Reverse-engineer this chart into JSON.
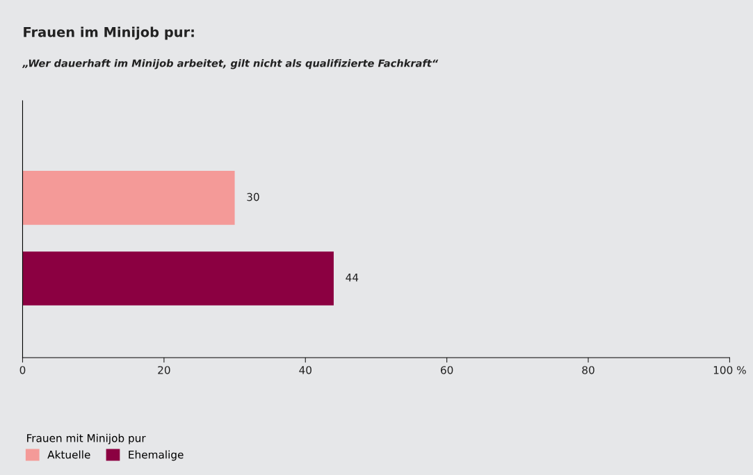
{
  "chart_data": {
    "type": "bar",
    "orientation": "horizontal",
    "title": "Frauen im Minijob pur:",
    "subtitle": "„Wer dauerhaft im Minijob arbeitet, gilt nicht als qualifizierte Fachkraft“",
    "categories": [
      null
    ],
    "series": [
      {
        "name": "Aktuelle",
        "color": "#f49a98",
        "values": [
          30
        ]
      },
      {
        "name": "Ehemalige",
        "color": "#8b0041",
        "values": [
          44
        ]
      }
    ],
    "xlim": [
      0,
      100
    ],
    "xticks": [
      0,
      20,
      40,
      60,
      80,
      {
        "value": 100,
        "label": "100 %"
      }
    ],
    "data_labels": true,
    "legend": "bottom left",
    "legend_title": "Frauen mit Minijob pur",
    "grid": false
  }
}
